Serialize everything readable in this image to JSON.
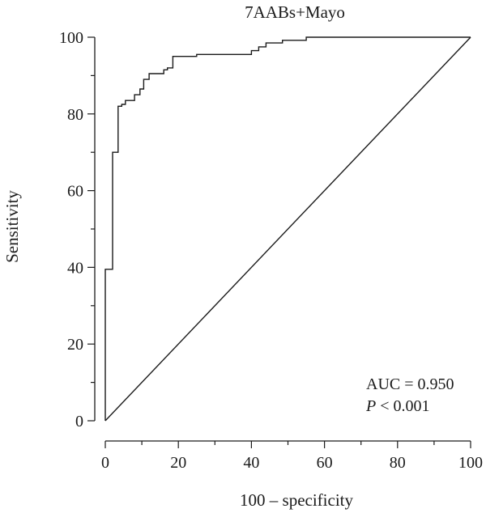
{
  "chart_data": {
    "type": "line",
    "title": "7AABs+Mayo",
    "xlabel": "100 – specificity",
    "ylabel": "Sensitivity",
    "xlim": [
      0,
      100
    ],
    "ylim": [
      0,
      100
    ],
    "x_ticks": [
      "0",
      "20",
      "40",
      "60",
      "80",
      "100"
    ],
    "y_ticks": [
      "0",
      "20",
      "40",
      "60",
      "80",
      "100"
    ],
    "grid": false,
    "series": [
      {
        "points": [
          [
            0,
            0
          ],
          [
            0,
            39.5
          ],
          [
            2,
            39.5
          ],
          [
            2,
            70
          ],
          [
            3.5,
            70
          ],
          [
            3.5,
            82
          ],
          [
            4.5,
            82
          ],
          [
            4.5,
            82.5
          ],
          [
            5.5,
            82.5
          ],
          [
            5.5,
            83.5
          ],
          [
            8,
            83.5
          ],
          [
            8,
            85
          ],
          [
            9.5,
            85
          ],
          [
            9.5,
            86.5
          ],
          [
            10.5,
            86.5
          ],
          [
            10.5,
            89
          ],
          [
            12,
            89
          ],
          [
            12,
            90.5
          ],
          [
            16,
            90.5
          ],
          [
            16,
            91.5
          ],
          [
            17,
            91.5
          ],
          [
            17,
            92
          ],
          [
            18.5,
            92
          ],
          [
            18.5,
            95
          ],
          [
            25,
            95
          ],
          [
            25,
            95.5
          ],
          [
            40,
            95.5
          ],
          [
            40,
            96.5
          ],
          [
            42,
            96.5
          ],
          [
            42,
            97.5
          ],
          [
            44,
            97.5
          ],
          [
            44,
            98.5
          ],
          [
            48.5,
            98.5
          ],
          [
            48.5,
            99.2
          ],
          [
            55,
            99.2
          ],
          [
            55,
            100
          ],
          [
            100,
            100
          ]
        ]
      },
      {
        "points": [
          [
            0,
            0
          ],
          [
            100,
            100
          ]
        ]
      }
    ],
    "annotations": {
      "auc": "AUC = 0.950",
      "p_symbol": "P",
      "p_rest": " < 0.001"
    }
  }
}
